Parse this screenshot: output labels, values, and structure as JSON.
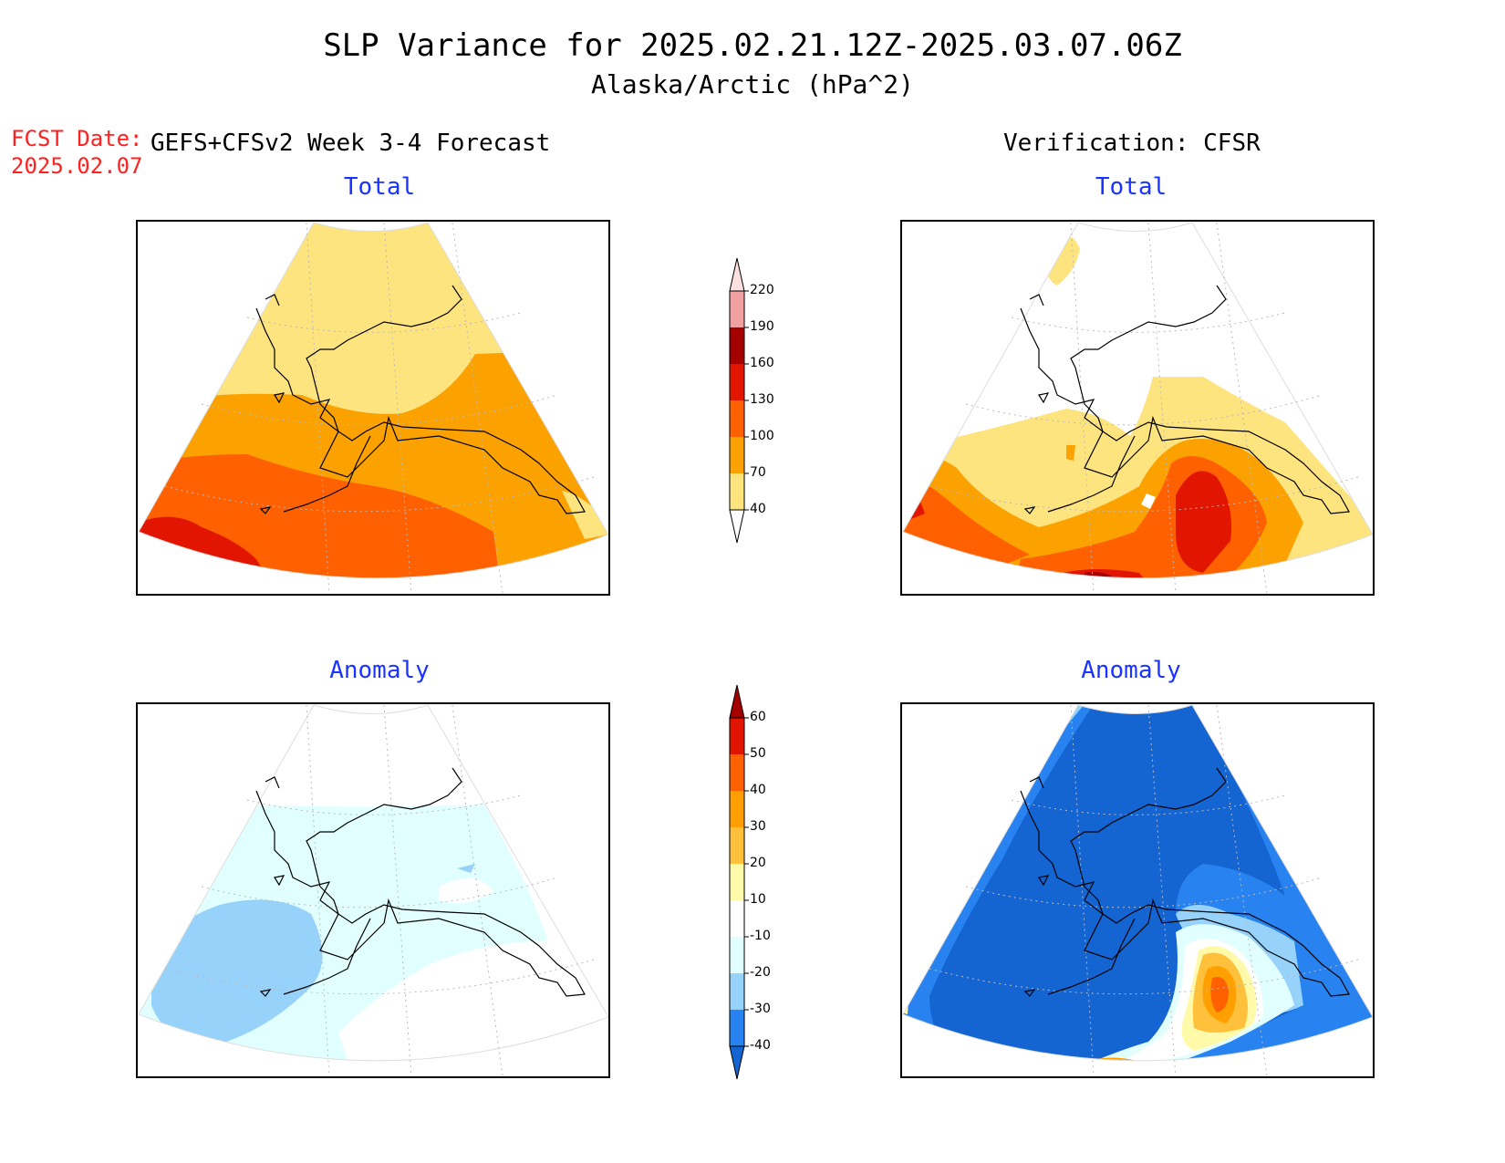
{
  "header": {
    "title": "SLP Variance for 2025.02.21.12Z-2025.03.07.06Z",
    "subtitle": "Alaska/Arctic (hPa^2)",
    "forecast_date_label": "FCST Date:",
    "forecast_date": "2025.02.07",
    "left_heading": "GEFS+CFSv2 Week 3-4 Forecast",
    "right_heading": "Verification: CFSR"
  },
  "panels": [
    {
      "id": "forecast-total",
      "title": "Total",
      "field": "total"
    },
    {
      "id": "verification-total",
      "title": "Total",
      "field": "total"
    },
    {
      "id": "forecast-anomaly",
      "title": "Anomaly",
      "field": "anomaly"
    },
    {
      "id": "verification-anomaly",
      "title": "Anomaly",
      "field": "anomaly"
    }
  ],
  "colorbars": {
    "total": {
      "ticks": [
        "40",
        "70",
        "100",
        "130",
        "160",
        "190",
        "220"
      ],
      "colors": [
        "#ffffff",
        "#fde47f",
        "#fba100",
        "#ff6000",
        "#e21600",
        "#a50000",
        "#f0a0a0",
        "#fde0e0"
      ]
    },
    "anomaly": {
      "ticks": [
        "-40",
        "-30",
        "-20",
        "-10",
        "10",
        "20",
        "30",
        "40",
        "50",
        "60"
      ],
      "colors": [
        "#1464d2",
        "#2882f0",
        "#96d2fa",
        "#e1ffff",
        "#ffffff",
        "#fffaaa",
        "#ffc03c",
        "#ffa000",
        "#ff6000",
        "#e11400",
        "#a50000"
      ]
    }
  }
}
